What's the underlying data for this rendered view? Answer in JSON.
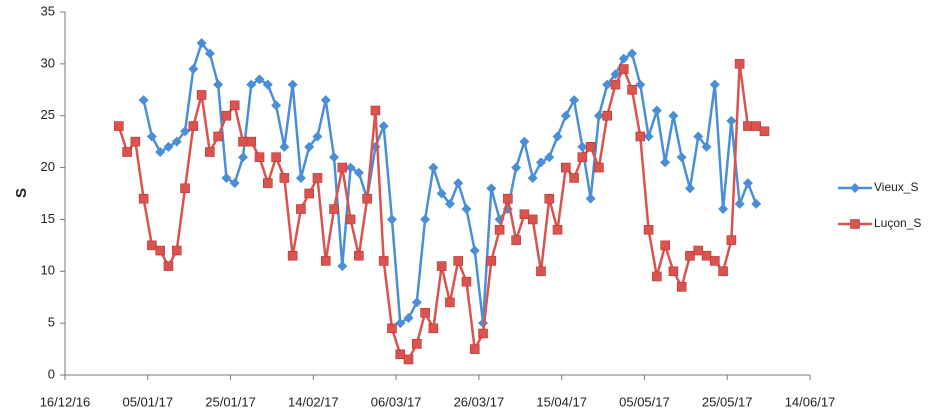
{
  "chart_data": {
    "type": "line",
    "y_label": "S",
    "x": [
      "29/12/16",
      "31/12/16",
      "02/01/17",
      "04/01/17",
      "06/01/17",
      "08/01/17",
      "10/01/17",
      "12/01/17",
      "14/01/17",
      "16/01/17",
      "18/01/17",
      "20/01/17",
      "22/01/17",
      "24/01/17",
      "26/01/17",
      "28/01/17",
      "30/01/17",
      "01/02/17",
      "03/02/17",
      "05/02/17",
      "07/02/17",
      "09/02/17",
      "11/02/17",
      "13/02/17",
      "15/02/17",
      "17/02/17",
      "19/02/17",
      "21/02/17",
      "23/02/17",
      "25/02/17",
      "27/02/17",
      "01/03/17",
      "03/03/17",
      "05/03/17",
      "07/03/17",
      "09/03/17",
      "11/03/17",
      "13/03/17",
      "15/03/17",
      "17/03/17",
      "19/03/17",
      "21/03/17",
      "23/03/17",
      "25/03/17",
      "27/03/17",
      "29/03/17",
      "31/03/17",
      "02/04/17",
      "04/04/17",
      "06/04/17",
      "08/04/17",
      "10/04/17",
      "12/04/17",
      "14/04/17",
      "16/04/17",
      "18/04/17",
      "20/04/17",
      "22/04/17",
      "24/04/17",
      "26/04/17",
      "28/04/17",
      "30/04/17",
      "02/05/17",
      "04/05/17",
      "06/05/17",
      "08/05/17",
      "10/05/17",
      "12/05/17",
      "14/05/17",
      "16/05/17",
      "18/05/17",
      "20/05/17",
      "22/05/17",
      "24/05/17",
      "26/05/17",
      "28/05/17",
      "30/05/17",
      "01/06/17",
      "03/06/17"
    ],
    "series": [
      {
        "name": "Vieux_S",
        "color": "#4a8fd6",
        "marker": "diamond",
        "values": [
          null,
          null,
          null,
          26.5,
          23,
          21.5,
          22,
          22.5,
          23.5,
          29.5,
          32,
          31,
          28,
          19,
          18.5,
          21,
          28,
          28.5,
          28,
          26,
          22,
          28,
          19,
          22,
          23,
          26.5,
          21,
          10.5,
          20,
          19.5,
          17,
          22,
          24,
          15,
          5,
          5.5,
          7,
          15,
          20,
          17.5,
          16.5,
          18.5,
          16,
          12,
          5,
          18,
          15,
          16,
          20,
          22.5,
          19,
          20.5,
          21,
          23,
          25,
          26.5,
          22,
          17,
          25,
          28,
          29,
          30.5,
          31,
          28,
          23,
          25.5,
          20.5,
          25,
          21,
          18,
          23,
          22,
          28,
          16,
          24.5,
          16.5,
          18.5,
          16.5,
          null
        ]
      },
      {
        "name": "Luçon_S",
        "color": "#d9534f",
        "marker": "square",
        "values": [
          24,
          21.5,
          22.5,
          17,
          12.5,
          12,
          10.5,
          12,
          18,
          24,
          27,
          21.5,
          23,
          25,
          26,
          22.5,
          22.5,
          21,
          18.5,
          21,
          19,
          11.5,
          16,
          17.5,
          19,
          11,
          16,
          20,
          15,
          11.5,
          17,
          25.5,
          11,
          4.5,
          2,
          1.5,
          3,
          6,
          4.5,
          10.5,
          7,
          11,
          9,
          2.5,
          4,
          11,
          14,
          17,
          13,
          15.5,
          15,
          10,
          17,
          14,
          20,
          19,
          21,
          22,
          20,
          25,
          28,
          29.5,
          27.5,
          23,
          14,
          9.5,
          12.5,
          10,
          8.5,
          11.5,
          12,
          11.5,
          11,
          10,
          13,
          30,
          24,
          24,
          23.5
        ]
      }
    ],
    "xlim": [
      "16/12/16",
      "14/06/17"
    ],
    "xticks": [
      "16/12/16",
      "05/01/17",
      "25/01/17",
      "14/02/17",
      "06/03/17",
      "26/03/17",
      "15/04/17",
      "05/05/17",
      "25/05/17",
      "14/06/17"
    ],
    "ylim": [
      0,
      35
    ],
    "yticks": [
      0,
      5,
      10,
      15,
      20,
      25,
      30,
      35
    ],
    "grid": false,
    "legend": "right"
  }
}
